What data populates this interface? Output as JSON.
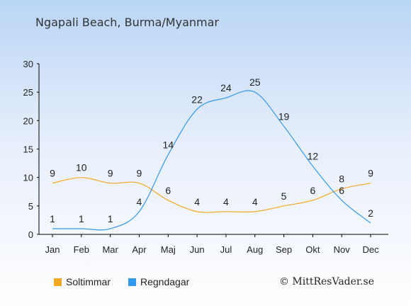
{
  "title": "Ngapali Beach, Burma/Myanmar",
  "copyright": "© MittResVader.se",
  "chart_data": {
    "type": "line",
    "categories": [
      "Jan",
      "Feb",
      "Mar",
      "Apr",
      "Maj",
      "Jun",
      "Jul",
      "Aug",
      "Sep",
      "Okt",
      "Nov",
      "Dec"
    ],
    "yticks": [
      "0",
      "5",
      "10",
      "15",
      "20",
      "25",
      "30"
    ],
    "ylim": [
      0,
      30
    ],
    "grid": false,
    "legend_position": "bottom-left",
    "series": [
      {
        "name": "Soltimmar",
        "color": "#f5a623",
        "values": [
          9,
          10,
          9,
          9,
          6,
          4,
          4,
          4,
          5,
          6,
          8,
          9
        ],
        "labels": [
          "9",
          "10",
          "9",
          "9",
          "6",
          "4",
          "4",
          "4",
          "5",
          "6",
          "8",
          "9"
        ]
      },
      {
        "name": "Regndagar",
        "color": "#3399ee",
        "values": [
          1,
          1,
          1,
          4,
          14,
          22,
          24,
          25,
          19,
          12,
          6,
          2
        ],
        "labels": [
          "1",
          "1",
          "1",
          "4",
          "14",
          "22",
          "24",
          "25",
          "19",
          "12",
          "6",
          "2"
        ]
      }
    ]
  }
}
